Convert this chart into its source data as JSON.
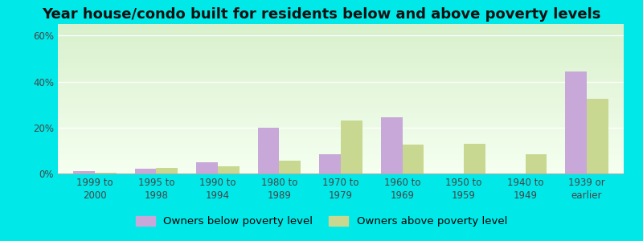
{
  "title": "Year house/condo built for residents below and above poverty levels",
  "categories": [
    "1999 to\n2000",
    "1995 to\n1998",
    "1990 to\n1994",
    "1980 to\n1989",
    "1970 to\n1979",
    "1960 to\n1969",
    "1950 to\n1959",
    "1940 to\n1949",
    "1939 or\nearlier"
  ],
  "below_poverty": [
    1.0,
    2.0,
    5.0,
    20.0,
    8.5,
    24.5,
    0.0,
    0.0,
    44.5
  ],
  "above_poverty": [
    0.5,
    2.5,
    3.0,
    5.5,
    23.0,
    12.5,
    13.0,
    8.5,
    32.5
  ],
  "below_color": "#c8a8d8",
  "above_color": "#c8d890",
  "outer_bg": "#00e8e8",
  "grad_bottom": "#f5fff0",
  "grad_top": "#d8f0cc",
  "ylim": [
    0,
    65
  ],
  "yticks": [
    0,
    20,
    40,
    60
  ],
  "bar_width": 0.35,
  "legend_below": "Owners below poverty level",
  "legend_above": "Owners above poverty level",
  "title_fontsize": 13,
  "axis_fontsize": 8.5,
  "legend_fontsize": 9.5
}
